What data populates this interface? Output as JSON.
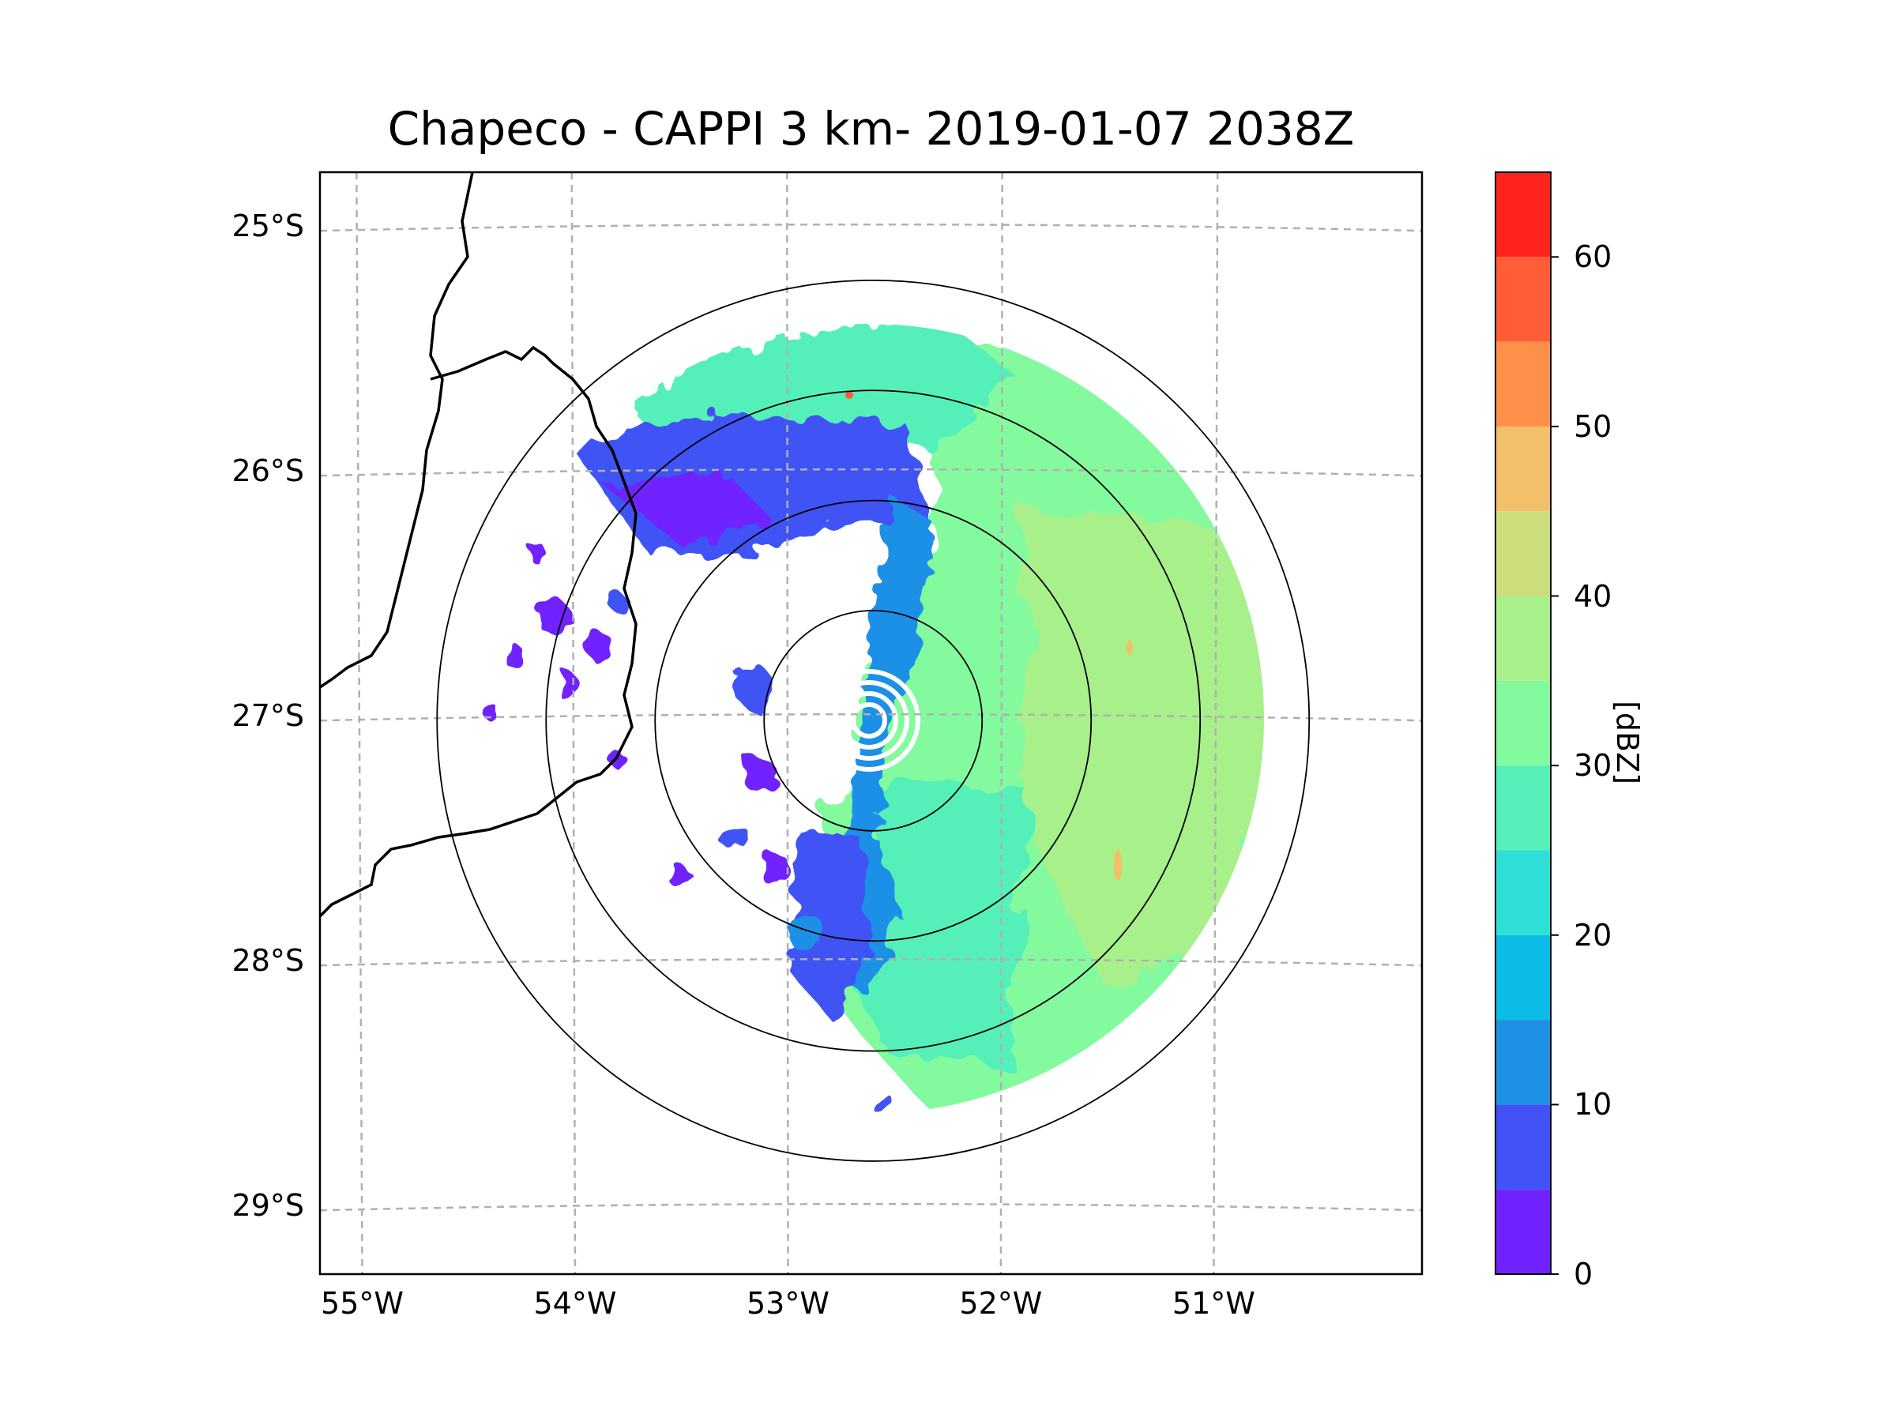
{
  "title": "Chapeco - CAPPI 3 km- 2019-01-07 2038Z",
  "chart_data": {
    "type": "map",
    "projection": "lat-lon",
    "radar_site": "Chapeco",
    "product": "CAPPI 3 km",
    "valid_time": "2019-01-07 2038Z",
    "radar_center": {
      "lon": -52.6,
      "lat": -27.02
    },
    "lon_range": [
      -55.17,
      -50.05
    ],
    "lat_range": [
      -29.28,
      -24.78
    ],
    "lon_ticks": [
      {
        "value": -55,
        "label": "55°W"
      },
      {
        "value": -54,
        "label": "54°W"
      },
      {
        "value": -53,
        "label": "53°W"
      },
      {
        "value": -52,
        "label": "52°W"
      },
      {
        "value": -51,
        "label": "51°W"
      }
    ],
    "lat_ticks": [
      {
        "value": -25,
        "label": "25°S"
      },
      {
        "value": -26,
        "label": "26°S"
      },
      {
        "value": -27,
        "label": "27°S"
      },
      {
        "value": -28,
        "label": "28°S"
      },
      {
        "value": -29,
        "label": "29°S"
      }
    ],
    "range_rings_km": [
      50,
      100,
      150,
      200
    ],
    "colorbar": {
      "label": "[dBZ]",
      "min": 0,
      "max": 65,
      "step": 5,
      "ticks": [
        {
          "value": 0,
          "label": "0"
        },
        {
          "value": 10,
          "label": "10"
        },
        {
          "value": 20,
          "label": "20"
        },
        {
          "value": 30,
          "label": "30"
        },
        {
          "value": 40,
          "label": "40"
        },
        {
          "value": 50,
          "label": "50"
        },
        {
          "value": 60,
          "label": "60"
        }
      ],
      "colors": [
        "#7023ff",
        "#4153f5",
        "#1e90e6",
        "#0bbde6",
        "#2ddfd5",
        "#55f0b9",
        "#84fa9e",
        "#a8f08a",
        "#ccdd7c",
        "#f2c06a",
        "#ff9049",
        "#ff5d36",
        "#fe241d"
      ]
    },
    "echo_regions": [
      {
        "name": "main-east-echo",
        "dbz": 33,
        "lon_range": [
          -52.45,
          -50.8
        ],
        "lat_range": [
          -28.7,
          -25.5
        ]
      },
      {
        "name": "northern-band",
        "dbz": 24,
        "lon_range": [
          -53.6,
          -52.2
        ],
        "lat_range": [
          -26.4,
          -25.4
        ]
      },
      {
        "name": "western-scatter",
        "dbz": 5,
        "lon_range": [
          -54.3,
          -53.0
        ],
        "lat_range": [
          -27.3,
          -26.3
        ]
      }
    ]
  }
}
